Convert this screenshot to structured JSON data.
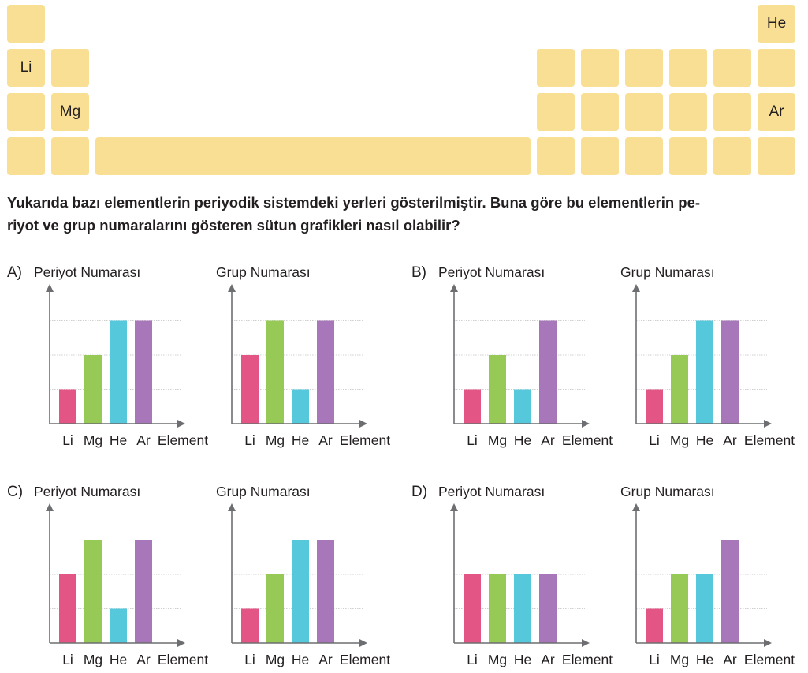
{
  "periodic_table": {
    "cells": [
      {
        "row": 1,
        "col": 1,
        "label": ""
      },
      {
        "row": 1,
        "col": 18,
        "label": "He"
      },
      {
        "row": 2,
        "col": 1,
        "label": "Li"
      },
      {
        "row": 2,
        "col": 2,
        "label": ""
      },
      {
        "row": 2,
        "col": 13,
        "label": ""
      },
      {
        "row": 2,
        "col": 14,
        "label": ""
      },
      {
        "row": 2,
        "col": 15,
        "label": ""
      },
      {
        "row": 2,
        "col": 16,
        "label": ""
      },
      {
        "row": 2,
        "col": 17,
        "label": ""
      },
      {
        "row": 2,
        "col": 18,
        "label": ""
      },
      {
        "row": 3,
        "col": 1,
        "label": ""
      },
      {
        "row": 3,
        "col": 2,
        "label": "Mg"
      },
      {
        "row": 3,
        "col": 13,
        "label": ""
      },
      {
        "row": 3,
        "col": 14,
        "label": ""
      },
      {
        "row": 3,
        "col": 15,
        "label": ""
      },
      {
        "row": 3,
        "col": 16,
        "label": ""
      },
      {
        "row": 3,
        "col": 17,
        "label": ""
      },
      {
        "row": 3,
        "col": 18,
        "label": "Ar"
      },
      {
        "row": 4,
        "col": 1,
        "label": ""
      },
      {
        "row": 4,
        "col": 2,
        "label": ""
      },
      {
        "row": 4,
        "col": "3-12",
        "label": ""
      },
      {
        "row": 4,
        "col": 13,
        "label": ""
      },
      {
        "row": 4,
        "col": 14,
        "label": ""
      },
      {
        "row": 4,
        "col": 15,
        "label": ""
      },
      {
        "row": 4,
        "col": 16,
        "label": ""
      },
      {
        "row": 4,
        "col": 17,
        "label": ""
      },
      {
        "row": 4,
        "col": 18,
        "label": ""
      }
    ]
  },
  "question": {
    "line1": "Yukarıda bazı elementlerin periyodik sistemdeki yerleri gösterilmiştir. Buna göre bu elementlerin pe-",
    "line2": "riyot ve grup numaralarını gösteren sütun grafikleri nasıl olabilir?"
  },
  "colors": {
    "cell": "#f8df93",
    "Li": "#e35585",
    "Mg": "#97c956",
    "He": "#55c8dc",
    "Ar": "#a777b9",
    "axis": "#6d6e71",
    "grid": "#cfcfcf"
  },
  "options": [
    {
      "letter": "A)"
    },
    {
      "letter": "B)"
    },
    {
      "letter": "C)"
    },
    {
      "letter": "D)"
    }
  ],
  "chart_data": [
    {
      "option": "A)",
      "type": "bar",
      "title": "Periyot Numarası",
      "xlabel": "Element",
      "categories": [
        "Li",
        "Mg",
        "He",
        "Ar"
      ],
      "values": [
        1,
        2,
        3,
        3
      ],
      "ylim": [
        0,
        3
      ],
      "grid": true
    },
    {
      "option": "A)",
      "type": "bar",
      "title": "Grup Numarası",
      "xlabel": "Element",
      "categories": [
        "Li",
        "Mg",
        "He",
        "Ar"
      ],
      "values": [
        2,
        3,
        1,
        3
      ],
      "ylim": [
        0,
        3
      ],
      "grid": true
    },
    {
      "option": "B)",
      "type": "bar",
      "title": "Periyot Numarası",
      "xlabel": "Element",
      "categories": [
        "Li",
        "Mg",
        "He",
        "Ar"
      ],
      "values": [
        1,
        2,
        1,
        3
      ],
      "ylim": [
        0,
        3
      ],
      "grid": true
    },
    {
      "option": "B)",
      "type": "bar",
      "title": "Grup Numarası",
      "xlabel": "Element",
      "categories": [
        "Li",
        "Mg",
        "He",
        "Ar"
      ],
      "values": [
        1,
        2,
        3,
        3
      ],
      "ylim": [
        0,
        3
      ],
      "grid": true
    },
    {
      "option": "C)",
      "type": "bar",
      "title": "Periyot Numarası",
      "xlabel": "Element",
      "categories": [
        "Li",
        "Mg",
        "He",
        "Ar"
      ],
      "values": [
        2,
        3,
        1,
        3
      ],
      "ylim": [
        0,
        3
      ],
      "grid": true
    },
    {
      "option": "C)",
      "type": "bar",
      "title": "Grup Numarası",
      "xlabel": "Element",
      "categories": [
        "Li",
        "Mg",
        "He",
        "Ar"
      ],
      "values": [
        1,
        2,
        3,
        3
      ],
      "ylim": [
        0,
        3
      ],
      "grid": true
    },
    {
      "option": "D)",
      "type": "bar",
      "title": "Periyot Numarası",
      "xlabel": "Element",
      "categories": [
        "Li",
        "Mg",
        "He",
        "Ar"
      ],
      "values": [
        2,
        2,
        2,
        2
      ],
      "ylim": [
        0,
        3
      ],
      "grid": true
    },
    {
      "option": "D)",
      "type": "bar",
      "title": "Grup Numarası",
      "xlabel": "Element",
      "categories": [
        "Li",
        "Mg",
        "He",
        "Ar"
      ],
      "values": [
        1,
        2,
        2,
        3
      ],
      "ylim": [
        0,
        3
      ],
      "grid": true
    }
  ]
}
